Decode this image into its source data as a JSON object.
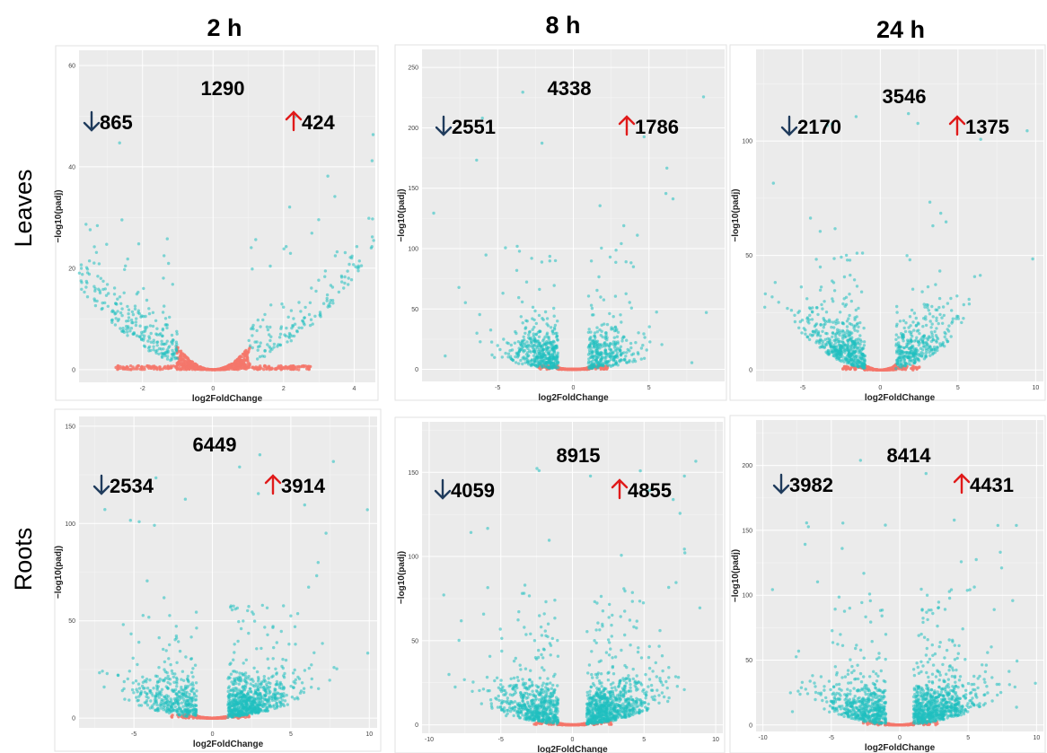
{
  "colors": {
    "significant": "#1fbfbf",
    "not_significant": "#f5776b",
    "down_arrow": "#1f3b5c",
    "up_arrow": "#e01a1a",
    "plot_background": "#ebebeb"
  },
  "column_titles": [
    "2 h",
    "8 h",
    "24 h"
  ],
  "row_titles": [
    "Leaves",
    "Roots"
  ],
  "chart_data": [
    {
      "type": "scatter",
      "panel": "Leaves 2 h",
      "xlabel": "log2FoldChange",
      "ylabel": "−log10(padj)",
      "xlim": [
        -3.8,
        4.6
      ],
      "ylim": [
        -2.5,
        63
      ],
      "xticks": [
        -2,
        0,
        2,
        4
      ],
      "yticks": [
        0,
        20,
        40,
        60
      ],
      "x_tick_labels": [
        "-2",
        "0",
        "2",
        "4"
      ],
      "y_tick_labels": [
        "0",
        "20",
        "40",
        "60"
      ],
      "total_degs": "1290",
      "down_regulated": "865",
      "up_regulated": "424",
      "fc_threshold": 1.0,
      "cloud": {
        "down_n": 320,
        "up_n": 170,
        "ns_n": 500,
        "curve": 4.5,
        "spread": 2.2,
        "tail": 6
      }
    },
    {
      "type": "scatter",
      "panel": "Leaves 8 h",
      "xlabel": "log2FoldChange",
      "ylabel": "−log10(padj)",
      "xlim": [
        -10,
        10
      ],
      "ylim": [
        -10,
        265
      ],
      "xticks": [
        -5,
        0,
        5
      ],
      "yticks": [
        0,
        50,
        100,
        150,
        200,
        250
      ],
      "x_tick_labels": [
        "-5",
        "0",
        "5"
      ],
      "y_tick_labels": [
        "0",
        "50",
        "100",
        "150",
        "200",
        "250"
      ],
      "total_degs": "4338",
      "down_regulated": "2551",
      "up_regulated": "1786",
      "fc_threshold": 1.0,
      "cloud": {
        "down_n": 420,
        "up_n": 320,
        "ns_n": 180,
        "curve": 1.4,
        "spread": 1.6,
        "tail": 12
      }
    },
    {
      "type": "scatter",
      "panel": "Leaves 24 h",
      "xlabel": "log2FoldChange",
      "ylabel": "−log10(padj)",
      "xlim": [
        -8,
        10.5
      ],
      "ylim": [
        -5,
        140
      ],
      "xticks": [
        -5,
        0,
        5,
        10
      ],
      "yticks": [
        0,
        50,
        100
      ],
      "x_tick_labels": [
        "-5",
        "0",
        "5",
        "10"
      ],
      "y_tick_labels": [
        "0",
        "50",
        "100"
      ],
      "total_degs": "3546",
      "down_regulated": "2170",
      "up_regulated": "1375",
      "fc_threshold": 1.0,
      "cloud": {
        "down_n": 480,
        "up_n": 330,
        "ns_n": 200,
        "curve": 2.4,
        "spread": 1.9,
        "tail": 10
      }
    },
    {
      "type": "scatter",
      "panel": "Roots 2 h",
      "xlabel": "log2FoldChange",
      "ylabel": "−log10(padj)",
      "xlim": [
        -8.5,
        10.5
      ],
      "ylim": [
        -5,
        155
      ],
      "xticks": [
        -5,
        0,
        5,
        10
      ],
      "yticks": [
        0,
        50,
        100,
        150
      ],
      "x_tick_labels": [
        "-5",
        "0",
        "5",
        "10"
      ],
      "y_tick_labels": [
        "0",
        "50",
        "100",
        "150"
      ],
      "total_degs": "6449",
      "down_regulated": "2534",
      "up_regulated": "3914",
      "fc_threshold": 1.0,
      "cloud": {
        "down_n": 380,
        "up_n": 700,
        "ns_n": 160,
        "curve": 1.2,
        "spread": 2.0,
        "tail": 14
      }
    },
    {
      "type": "scatter",
      "panel": "Roots 8 h",
      "xlabel": "log2FoldChange",
      "ylabel": "−log10(padj)",
      "xlim": [
        -10.5,
        10.5
      ],
      "ylim": [
        -5,
        180
      ],
      "xticks": [
        -10,
        -5,
        0,
        5,
        10
      ],
      "yticks": [
        0,
        50,
        100,
        150
      ],
      "x_tick_labels": [
        "-10",
        "-5",
        "0",
        "5",
        "10"
      ],
      "y_tick_labels": [
        "0",
        "50",
        "100",
        "150"
      ],
      "total_degs": "8915",
      "down_regulated": "4059",
      "up_regulated": "4855",
      "fc_threshold": 1.0,
      "cloud": {
        "down_n": 560,
        "up_n": 780,
        "ns_n": 160,
        "curve": 1.2,
        "spread": 2.2,
        "tail": 16
      }
    },
    {
      "type": "scatter",
      "panel": "Roots 24 h",
      "xlabel": "log2FoldChange",
      "ylabel": "−log10(padj)",
      "xlim": [
        -10.5,
        10.5
      ],
      "ylim": [
        -5,
        235
      ],
      "xticks": [
        -10,
        -5,
        0,
        5,
        10
      ],
      "yticks": [
        0,
        50,
        100,
        150,
        200
      ],
      "x_tick_labels": [
        "-10",
        "-5",
        "0",
        "5",
        "10"
      ],
      "y_tick_labels": [
        "0",
        "50",
        "100",
        "150",
        "200"
      ],
      "total_degs": "8414",
      "down_regulated": "3982",
      "up_regulated": "4431",
      "fc_threshold": 1.0,
      "cloud": {
        "down_n": 520,
        "up_n": 720,
        "ns_n": 160,
        "curve": 1.5,
        "spread": 2.2,
        "tail": 18
      }
    }
  ]
}
